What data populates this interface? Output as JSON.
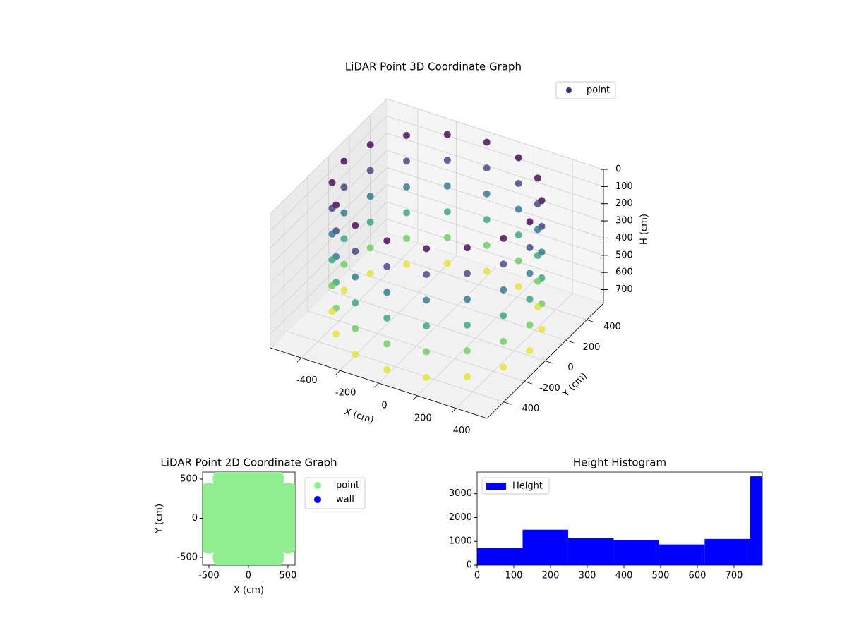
{
  "chart_data": [
    {
      "type": "scatter3d",
      "title": "LiDAR Point 3D Coordinate Graph",
      "xlabel": "X (cm)",
      "ylabel": "Y (cm)",
      "zlabel": "H (cm)",
      "xlim": [
        -560,
        560
      ],
      "ylim": [
        -560,
        560
      ],
      "zlim": [
        0,
        780
      ],
      "zinverted": true,
      "xticks": [
        -400,
        -200,
        0,
        200,
        400
      ],
      "yticks": [
        -400,
        -200,
        0,
        200,
        400
      ],
      "zticks": [
        0,
        100,
        200,
        300,
        400,
        500,
        600,
        700
      ],
      "colormap": "viridis",
      "legend": "upper right",
      "series": [
        {
          "name": "point",
          "color": "#472c7a",
          "x": [
            480,
            443,
            339,
            184,
            0,
            -184,
            -339,
            -443,
            -480,
            -443,
            -339,
            -184,
            0,
            184,
            339,
            443,
            480,
            443,
            339,
            184,
            0,
            -184,
            -339,
            -443,
            -480,
            -443,
            -339,
            -184,
            0,
            184,
            339,
            443,
            480,
            443,
            339,
            184,
            0,
            -184,
            -339,
            -443,
            -480,
            -443,
            -339,
            -184,
            0,
            184,
            339,
            443,
            480,
            443,
            339,
            184,
            0,
            -184,
            -339,
            -443,
            -480,
            -443,
            -339,
            -184,
            0,
            184,
            339,
            443,
            480,
            443,
            339,
            184,
            0,
            -184,
            -339,
            -443,
            -480,
            -443,
            -339,
            -184,
            0,
            184,
            339,
            443,
            480,
            443,
            339,
            184,
            0,
            -184,
            -339,
            -443,
            -480,
            -443,
            -339,
            -184,
            0,
            184,
            339,
            443
          ],
          "y": [
            0,
            184,
            339,
            443,
            480,
            443,
            339,
            184,
            0,
            -184,
            -339,
            -443,
            -480,
            -443,
            -339,
            -184,
            0,
            184,
            339,
            443,
            480,
            443,
            339,
            184,
            0,
            -184,
            -339,
            -443,
            -480,
            -443,
            -339,
            -184,
            0,
            184,
            339,
            443,
            480,
            443,
            339,
            184,
            0,
            -184,
            -339,
            -443,
            -480,
            -443,
            -339,
            -184,
            0,
            184,
            339,
            443,
            480,
            443,
            339,
            184,
            0,
            -184,
            -339,
            -443,
            -480,
            -443,
            -339,
            -184,
            0,
            184,
            339,
            443,
            480,
            443,
            339,
            184,
            0,
            -184,
            -339,
            -443,
            -480,
            -443,
            -339,
            -184,
            0,
            184,
            339,
            443,
            480,
            443,
            339,
            184,
            0,
            -184,
            -339,
            -443,
            -480,
            -443,
            -339,
            -184
          ],
          "z": [
            0,
            0,
            0,
            0,
            0,
            0,
            0,
            0,
            0,
            0,
            0,
            0,
            0,
            0,
            0,
            0,
            150,
            150,
            150,
            150,
            150,
            150,
            150,
            150,
            150,
            150,
            150,
            150,
            150,
            150,
            150,
            150,
            300,
            300,
            300,
            300,
            300,
            300,
            300,
            300,
            300,
            300,
            300,
            300,
            300,
            300,
            300,
            300,
            450,
            450,
            450,
            450,
            450,
            450,
            450,
            450,
            450,
            450,
            450,
            450,
            450,
            450,
            450,
            450,
            600,
            600,
            600,
            600,
            600,
            600,
            600,
            600,
            600,
            600,
            600,
            600,
            600,
            600,
            600,
            600,
            750,
            750,
            750,
            750,
            750,
            750,
            750,
            750,
            750,
            750,
            750,
            750,
            750,
            750,
            750,
            750
          ]
        }
      ]
    },
    {
      "type": "scatter",
      "title": "LiDAR Point 2D Coordinate Graph",
      "xlabel": "X (cm)",
      "ylabel": "Y (cm)",
      "xlim": [
        -580,
        590
      ],
      "ylim": [
        -600,
        590
      ],
      "xticks": [
        -500,
        0,
        500
      ],
      "yticks": [
        -500,
        0,
        500
      ],
      "legend": "outside right",
      "series": [
        {
          "name": "point",
          "color": "#90ee90",
          "x": [
            -300,
            -100,
            100,
            300,
            -500,
            -300,
            -100,
            100,
            300,
            500,
            -500,
            -300,
            -100,
            100,
            300,
            500,
            -500,
            -300,
            -100,
            100,
            300,
            500,
            -500,
            -300,
            -100,
            100,
            300,
            500,
            -300,
            -100,
            100,
            300
          ],
          "y": [
            500,
            500,
            500,
            500,
            300,
            300,
            300,
            300,
            300,
            300,
            100,
            100,
            100,
            100,
            100,
            100,
            -100,
            -100,
            -100,
            -100,
            -100,
            -100,
            -300,
            -300,
            -300,
            -300,
            -300,
            -300,
            -500,
            -500,
            -500,
            -500
          ]
        },
        {
          "name": "wall",
          "color": "#0000ff",
          "x": [],
          "y": []
        }
      ]
    },
    {
      "type": "histogram",
      "title": "Height Histogram",
      "name": "Height",
      "color": "#0000ff",
      "bins": [
        0,
        124,
        248,
        372,
        496,
        620,
        744,
        868
      ],
      "counts": [
        720,
        1490,
        1130,
        1040,
        870,
        1100,
        3730
      ],
      "xlim": [
        0,
        777
      ],
      "ylim": [
        0,
        3910
      ],
      "xticks": [
        0,
        100,
        200,
        300,
        400,
        500,
        600,
        700
      ],
      "yticks": [
        0,
        1000,
        2000,
        3000
      ],
      "legend": "upper left"
    }
  ]
}
